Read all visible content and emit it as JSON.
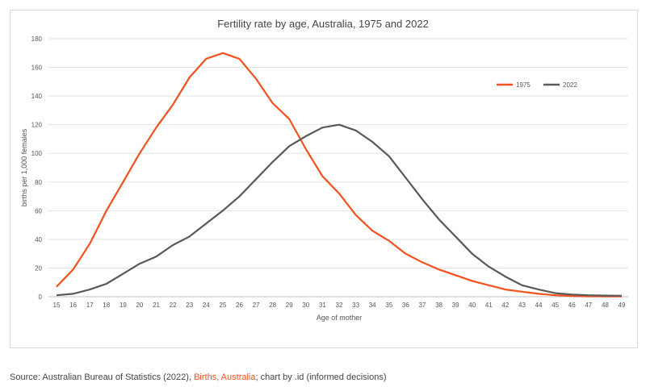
{
  "chart_data": {
    "type": "line",
    "title": "Fertility rate by age, Australia, 1975 and 2022",
    "xlabel": "Age of mother",
    "ylabel": "births per 1,000 females",
    "ylim": [
      0,
      180
    ],
    "yticks": [
      0,
      20,
      40,
      60,
      80,
      100,
      120,
      140,
      160,
      180
    ],
    "grid": true,
    "legend_position": "top-right",
    "x": [
      15,
      16,
      17,
      18,
      19,
      20,
      21,
      22,
      23,
      24,
      25,
      26,
      27,
      28,
      29,
      30,
      31,
      32,
      33,
      34,
      35,
      36,
      37,
      38,
      39,
      40,
      41,
      42,
      43,
      44,
      45,
      46,
      47,
      48,
      49
    ],
    "series": [
      {
        "name": "1975",
        "color": "#f4511e",
        "values": [
          7,
          19,
          37,
          60,
          80,
          100,
          118,
          134,
          153,
          166,
          170,
          166,
          152,
          135,
          124,
          103,
          84,
          72,
          57,
          46,
          39,
          30,
          24,
          19,
          15,
          11,
          8,
          5,
          3.5,
          2,
          1,
          0.5,
          0.3,
          0.2,
          0.2
        ]
      },
      {
        "name": "2022",
        "color": "#595959",
        "values": [
          1,
          2,
          5,
          9,
          16,
          23,
          28,
          36,
          42,
          51,
          60,
          70,
          82,
          94,
          105,
          112,
          118,
          120,
          116,
          108,
          98,
          83,
          68,
          54,
          42,
          30,
          21,
          14,
          8,
          5,
          2.5,
          1.5,
          1,
          0.8,
          0.7
        ]
      }
    ]
  },
  "source": {
    "prefix": "Source: Australian Bureau of Statistics (2022), ",
    "link": "Births, Australia",
    "suffix": "; chart by .id (informed decisions)"
  }
}
